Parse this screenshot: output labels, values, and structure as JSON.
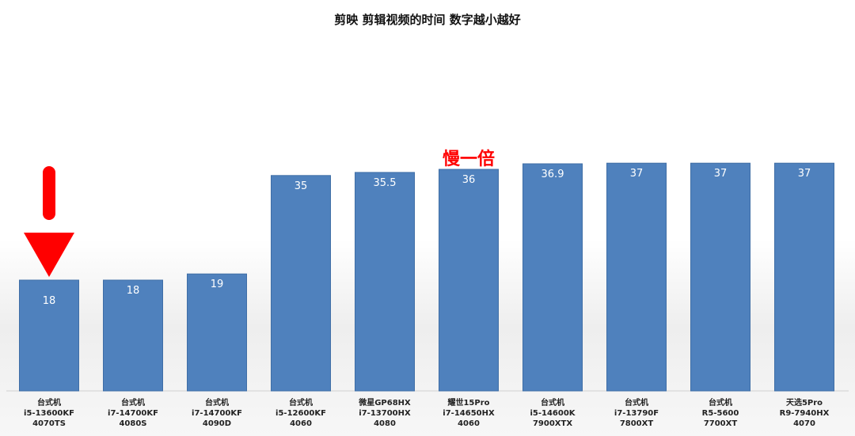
{
  "chart_data": {
    "type": "bar",
    "title": "剪映 剪辑视频的时间 数字越小越好",
    "annotation": "慢一倍",
    "colors": {
      "bar": "#4f81bd",
      "bar_edge": "#3f6ea6",
      "annotation": "#ff0000",
      "arrow": "#ff0000",
      "label": "#ffffff"
    },
    "categories": [
      [
        "台式机",
        "i5-13600KF",
        "4070TS"
      ],
      [
        "台式机",
        "i7-14700KF",
        "4080S"
      ],
      [
        "台式机",
        "i7-14700KF",
        "4090D"
      ],
      [
        "台式机",
        "i5-12600KF",
        "4060"
      ],
      [
        "微星GP68HX",
        "i7-13700HX",
        "4080"
      ],
      [
        "耀世15Pro",
        "i7-14650HX",
        "4060"
      ],
      [
        "台式机",
        "i5-14600K",
        "7900XTX"
      ],
      [
        "台式机",
        "i7-13790F",
        "7800XT"
      ],
      [
        "台式机",
        "R5-5600",
        "7700XT"
      ],
      [
        "天选5Pro",
        "R9-7940HX",
        "4070"
      ]
    ],
    "values": [
      18,
      18,
      19,
      35,
      35.5,
      36,
      36.9,
      37,
      37,
      37
    ],
    "value_labels": [
      "18",
      "18",
      "19",
      "35",
      "35.5",
      "36",
      "36.9",
      "37",
      "37",
      "37"
    ],
    "ylim": [
      0,
      54
    ],
    "grid": false,
    "legend": "none"
  }
}
